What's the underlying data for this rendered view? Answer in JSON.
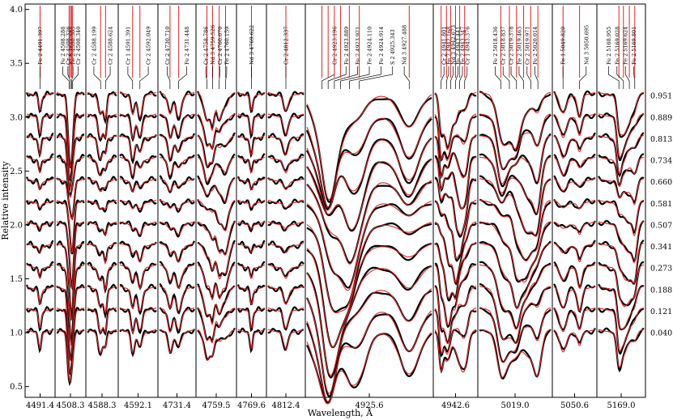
{
  "chart_data": {
    "type": "line",
    "xlabel": "Wavelength, Å",
    "ylabel": "Relative intensity",
    "ylim": [
      0.4,
      4.05
    ],
    "yticks": [
      "0.5",
      "1.0",
      "1.5",
      "2.0",
      "2.5",
      "3.0",
      "3.5",
      "4.0"
    ],
    "series_colors": {
      "observed": "#000000",
      "model": "#d62728"
    },
    "phases": [
      "0.951",
      "0.889",
      "0.813",
      "0.734",
      "0.660",
      "0.581",
      "0.507",
      "0.341",
      "0.273",
      "0.188",
      "0.121",
      "0.040"
    ],
    "panels": [
      {
        "center": "4491.4",
        "lines": [
          {
            "label": "Fe 2 4491.397",
            "pos": 0.5
          }
        ]
      },
      {
        "center": "4508.3",
        "lines": [
          {
            "label": "Fe 2 4508.288",
            "pos": 0.45
          },
          {
            "label": "Cr 2 4508.326",
            "pos": 0.5
          },
          {
            "label": "Fe 2 4508.303",
            "pos": 0.54
          },
          {
            "label": "Cr 2 4508.340",
            "pos": 0.58
          }
        ]
      },
      {
        "center": "4588.3",
        "lines": [
          {
            "label": "Cr 2 4588.199",
            "pos": 0.45
          },
          {
            "label": "Cr 2 4588.624",
            "pos": 0.62
          }
        ]
      },
      {
        "center": "4592.1",
        "lines": [
          {
            "label": "Cr 1 4591.391",
            "pos": 0.35
          },
          {
            "label": "Cr 2 4592.049",
            "pos": 0.55
          }
        ]
      },
      {
        "center": "4731.4",
        "lines": [
          {
            "label": "Cr 2 4730.710",
            "pos": 0.3
          },
          {
            "label": "Fe 2 4731.448",
            "pos": 0.55
          }
        ]
      },
      {
        "center": "4759.5",
        "lines": [
          {
            "label": "Cr 2 4758.786",
            "pos": 0.25
          },
          {
            "label": "Nd 3 4759.526",
            "pos": 0.4
          },
          {
            "label": "Cr 2 4760.070",
            "pos": 0.58
          },
          {
            "label": "Fe 2 4760.159",
            "pos": 0.75
          }
        ]
      },
      {
        "center": "4769.6",
        "lines": [
          {
            "label": "Nd 3 4769.622",
            "pos": 0.5
          }
        ]
      },
      {
        "center": "4812.4",
        "lines": [
          {
            "label": "Cr 2 4812.337",
            "pos": 0.5
          }
        ]
      },
      {
        "center": "4925.6",
        "lines": [
          {
            "label": "Cr 2 4923.196",
            "pos": 0.12
          },
          {
            "label": "Fe 2 4923.889",
            "pos": 0.17
          },
          {
            "label": "Fe 2 4923.921",
            "pos": 0.22
          },
          {
            "label": "Fe 2 4924.110",
            "pos": 0.27
          },
          {
            "label": "Fe 2 4924.914",
            "pos": 0.34
          },
          {
            "label": "S 2 4925.343",
            "pos": 0.42
          },
          {
            "label": "Nd 3 4927.488",
            "pos": 0.82
          }
        ]
      },
      {
        "center": "4942.6",
        "lines": [
          {
            "label": "Cr 2 4941.801",
            "pos": 0.15
          },
          {
            "label": "Fe 2 4942.168",
            "pos": 0.28
          },
          {
            "label": "Nd 3 4942.673",
            "pos": 0.38
          },
          {
            "label": "Fe 2 4943.441",
            "pos": 0.5
          },
          {
            "label": "Fe 2 4943.347",
            "pos": 0.6
          },
          {
            "label": "Cr 1 4943.376",
            "pos": 0.72
          }
        ]
      },
      {
        "center": "5019.0",
        "lines": [
          {
            "label": "Fe 2 5018.436",
            "pos": 0.3
          },
          {
            "label": "Cr 2 5018.837",
            "pos": 0.42
          },
          {
            "label": "Cr 2 5019.378",
            "pos": 0.52
          },
          {
            "label": "Fe 2 5019.463",
            "pos": 0.62
          },
          {
            "label": "Cr 2 5019.971",
            "pos": 0.72
          },
          {
            "label": "Fe 2 5020.014",
            "pos": 0.82
          }
        ]
      },
      {
        "center": "5050.6",
        "lines": [
          {
            "label": "Fe 1 5049.820",
            "pos": 0.22
          },
          {
            "label": "Nd 3 5050.695",
            "pos": 0.62
          }
        ]
      },
      {
        "center": "5169.0",
        "lines": [
          {
            "label": "Fe 2 5168.955",
            "pos": 0.45
          },
          {
            "label": "Fe 2 5169.028",
            "pos": 0.55
          },
          {
            "label": "Fe 2 5169.624",
            "pos": 0.68
          },
          {
            "label": "Fe 2 5169.801",
            "pos": 0.8
          }
        ]
      }
    ]
  }
}
